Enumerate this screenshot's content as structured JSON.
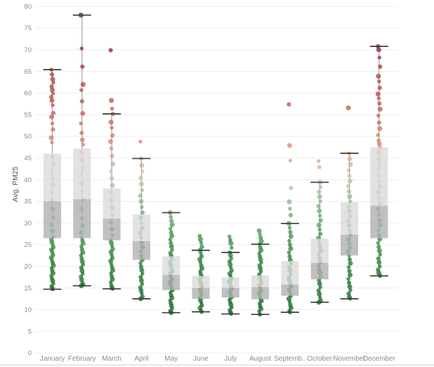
{
  "chart_data": {
    "type": "boxplot",
    "title": "",
    "xlabel": "",
    "ylabel": "Avg. PM25",
    "ylim": [
      0,
      80
    ],
    "grid": true,
    "y_ticks": [
      0,
      5,
      10,
      15,
      20,
      25,
      30,
      35,
      40,
      45,
      50,
      55,
      60,
      65,
      70,
      75,
      80
    ],
    "categories": [
      "January",
      "February",
      "March",
      "April",
      "May",
      "June",
      "July",
      "August",
      "September",
      "October",
      "November",
      "December"
    ],
    "series": [
      {
        "name": "January",
        "label": "January",
        "whisker_low": 14.7,
        "q1": 26.5,
        "median": 35.0,
        "q3": 46.0,
        "whisker_high": 65.4,
        "points": [
          65.4,
          64.3,
          63.2,
          62.4,
          61.5,
          60.7,
          59.9,
          59.1,
          58.3,
          57.2,
          55.4,
          54.5,
          53.0,
          51.6,
          49.7,
          48.6,
          45.4,
          43.7,
          42.1,
          40.4,
          38.8,
          37.1,
          35.3,
          33.2,
          31.3,
          29.6,
          28.2,
          26.8,
          26.2,
          25.6,
          25.0,
          24.4,
          23.8,
          23.2,
          22.6,
          22.0,
          21.4,
          20.8,
          20.2,
          19.6,
          19.0,
          18.4,
          17.8,
          17.2,
          16.6,
          16.0,
          15.4,
          14.9,
          14.7
        ]
      },
      {
        "name": "February",
        "label": "February",
        "whisker_low": 15.5,
        "q1": 26.5,
        "median": 35.5,
        "q3": 47.2,
        "whisker_high": 78.0,
        "points": [
          78.0,
          70.3,
          66.1,
          62.0,
          60.7,
          58.1,
          55.3,
          53.0,
          50.8,
          49.2,
          48.1,
          46.2,
          44.5,
          42.8,
          41.0,
          39.2,
          37.5,
          35.4,
          33.2,
          31.1,
          29.3,
          27.8,
          26.7,
          26.0,
          25.3,
          24.6,
          23.9,
          23.2,
          22.5,
          21.8,
          21.1,
          20.4,
          19.7,
          19.0,
          18.3,
          17.6,
          16.9,
          16.2,
          15.8,
          15.5
        ]
      },
      {
        "name": "March",
        "label": "March",
        "whisker_low": 14.8,
        "q1": 26.0,
        "median": 31.0,
        "q3": 38.0,
        "whisker_high": 55.2,
        "points": [
          69.9,
          58.3,
          56.4,
          55.2,
          53.3,
          52.0,
          50.2,
          48.8,
          47.2,
          45.5,
          43.6,
          42.0,
          40.3,
          38.7,
          37.0,
          35.2,
          33.5,
          31.8,
          30.1,
          28.6,
          27.2,
          26.1,
          25.4,
          24.7,
          24.0,
          23.3,
          22.6,
          21.9,
          21.2,
          20.5,
          19.8,
          19.1,
          18.4,
          17.7,
          17.0,
          16.3,
          15.6,
          15.0,
          14.8
        ]
      },
      {
        "name": "April",
        "label": "April",
        "whisker_low": 12.5,
        "q1": 21.5,
        "median": 25.8,
        "q3": 32.0,
        "whisker_high": 44.9,
        "points": [
          48.8,
          44.9,
          43.3,
          41.9,
          40.4,
          39.0,
          37.6,
          36.3,
          35.0,
          33.7,
          32.4,
          31.2,
          30.0,
          28.8,
          27.7,
          26.6,
          25.5,
          24.4,
          23.4,
          22.4,
          21.5,
          20.7,
          19.9,
          19.1,
          18.3,
          17.5,
          16.7,
          15.9,
          15.1,
          14.4,
          13.7,
          13.0,
          12.5
        ]
      },
      {
        "name": "May",
        "label": "May",
        "whisker_low": 9.3,
        "q1": 14.5,
        "median": 18.0,
        "q3": 22.3,
        "whisker_high": 32.4,
        "points": [
          32.4,
          31.4,
          30.5,
          29.6,
          28.7,
          27.8,
          27.0,
          26.2,
          25.4,
          24.6,
          23.8,
          23.1,
          22.4,
          21.7,
          21.0,
          20.3,
          19.6,
          18.9,
          18.2,
          17.5,
          16.9,
          16.3,
          15.7,
          15.1,
          14.5,
          13.9,
          13.3,
          12.7,
          12.1,
          11.5,
          10.9,
          10.3,
          9.7,
          9.3
        ]
      },
      {
        "name": "June",
        "label": "June",
        "whisker_low": 9.5,
        "q1": 12.5,
        "median": 15.0,
        "q3": 17.8,
        "whisker_high": 23.7,
        "points": [
          27.0,
          26.2,
          25.4,
          24.5,
          23.7,
          23.0,
          22.3,
          21.6,
          20.9,
          20.2,
          19.5,
          18.8,
          18.2,
          17.6,
          17.0,
          16.4,
          15.8,
          15.2,
          14.6,
          14.0,
          13.4,
          12.8,
          12.2,
          11.6,
          11.0,
          10.4,
          9.8,
          9.5
        ]
      },
      {
        "name": "July",
        "label": "July",
        "whisker_low": 9.0,
        "q1": 12.8,
        "median": 15.0,
        "q3": 17.5,
        "whisker_high": 23.2,
        "points": [
          26.9,
          26.1,
          25.3,
          24.3,
          23.2,
          22.5,
          21.8,
          21.1,
          20.4,
          19.7,
          19.0,
          18.3,
          17.7,
          17.1,
          16.5,
          15.9,
          15.3,
          14.7,
          14.1,
          13.5,
          12.9,
          12.3,
          11.7,
          11.1,
          10.5,
          9.9,
          9.3,
          9.0
        ]
      },
      {
        "name": "August",
        "label": "August",
        "whisker_low": 8.9,
        "q1": 12.4,
        "median": 15.2,
        "q3": 17.9,
        "whisker_high": 25.1,
        "points": [
          28.2,
          27.4,
          26.6,
          25.8,
          25.1,
          24.4,
          23.7,
          23.0,
          22.3,
          21.6,
          20.9,
          20.2,
          19.5,
          18.8,
          18.1,
          17.4,
          16.8,
          16.2,
          15.6,
          15.0,
          14.4,
          13.8,
          13.2,
          12.6,
          12.0,
          11.4,
          10.8,
          10.2,
          9.6,
          8.9
        ]
      },
      {
        "name": "September",
        "label": "Septemb..",
        "whisker_low": 9.4,
        "q1": 13.2,
        "median": 15.8,
        "q3": 21.2,
        "whisker_high": 29.9,
        "points": [
          57.4,
          47.9,
          44.4,
          38.1,
          34.9,
          33.3,
          31.8,
          29.9,
          28.9,
          27.9,
          26.9,
          25.9,
          25.0,
          24.1,
          23.2,
          22.3,
          21.4,
          20.6,
          19.8,
          19.0,
          18.2,
          17.4,
          16.7,
          16.0,
          15.3,
          14.6,
          13.9,
          13.2,
          12.5,
          11.8,
          11.1,
          10.4,
          9.7,
          9.4
        ]
      },
      {
        "name": "October",
        "label": "October",
        "whisker_low": 11.7,
        "q1": 17.0,
        "median": 20.8,
        "q3": 26.4,
        "whisker_high": 39.4,
        "points": [
          44.3,
          42.9,
          39.4,
          38.3,
          37.2,
          36.1,
          35.0,
          33.9,
          32.8,
          31.7,
          30.6,
          29.5,
          28.5,
          27.5,
          26.5,
          25.5,
          24.5,
          23.6,
          22.7,
          21.8,
          20.9,
          20.0,
          19.2,
          18.4,
          17.6,
          16.8,
          16.0,
          15.2,
          14.4,
          13.6,
          12.8,
          12.1,
          11.7
        ]
      },
      {
        "name": "November",
        "label": "November",
        "whisker_low": 12.5,
        "q1": 22.5,
        "median": 27.3,
        "q3": 34.8,
        "whisker_high": 46.1,
        "points": [
          56.6,
          46.1,
          44.8,
          43.5,
          42.2,
          40.9,
          39.7,
          38.5,
          37.3,
          36.1,
          34.9,
          33.8,
          32.7,
          31.6,
          30.5,
          29.4,
          28.3,
          27.3,
          26.3,
          25.3,
          24.3,
          23.4,
          22.5,
          21.6,
          20.7,
          19.8,
          18.9,
          18.0,
          17.1,
          16.2,
          15.3,
          14.5,
          13.7,
          12.9,
          12.5
        ]
      },
      {
        "name": "December",
        "label": "December",
        "whisker_low": 17.8,
        "q1": 26.5,
        "median": 34.0,
        "q3": 47.5,
        "whisker_high": 70.8,
        "points": [
          70.8,
          70.0,
          68.2,
          66.1,
          63.9,
          62.7,
          61.2,
          59.8,
          58.8,
          57.6,
          56.3,
          54.8,
          53.2,
          51.8,
          50.3,
          49.0,
          48.2,
          47.4,
          46.2,
          44.9,
          43.6,
          42.3,
          41.0,
          39.7,
          38.4,
          37.1,
          35.8,
          34.5,
          33.2,
          31.9,
          30.7,
          29.5,
          28.3,
          27.2,
          26.3,
          25.4,
          24.5,
          23.6,
          22.7,
          21.8,
          20.9,
          20.0,
          19.2,
          18.5,
          18.0,
          17.8
        ]
      }
    ],
    "color_scale": [
      [
        9,
        "#1f6e33"
      ],
      [
        20,
        "#2f7d3c"
      ],
      [
        26,
        "#449250"
      ],
      [
        32,
        "#74a878"
      ],
      [
        37,
        "#a3bfa0"
      ],
      [
        41,
        "#cfc2b6"
      ],
      [
        45,
        "#d9a68c"
      ],
      [
        49,
        "#d4876d"
      ],
      [
        54,
        "#c76a5b"
      ],
      [
        59,
        "#ba564e"
      ],
      [
        64,
        "#ac4647"
      ],
      [
        70,
        "#8e3140"
      ],
      [
        78,
        "#7c2839"
      ]
    ],
    "colors": {
      "gridline": "#ededed",
      "box_upper": "#dbdbdb",
      "box_lower": "#b0b0b0",
      "whisker_line": "#9a9a9a",
      "whisker_cap": "#3c3c3c",
      "tick_label": "#8c8c8c",
      "axis_title": "#4a4a4a",
      "bottom_border": "#d4d4d4"
    },
    "legend": "none"
  }
}
